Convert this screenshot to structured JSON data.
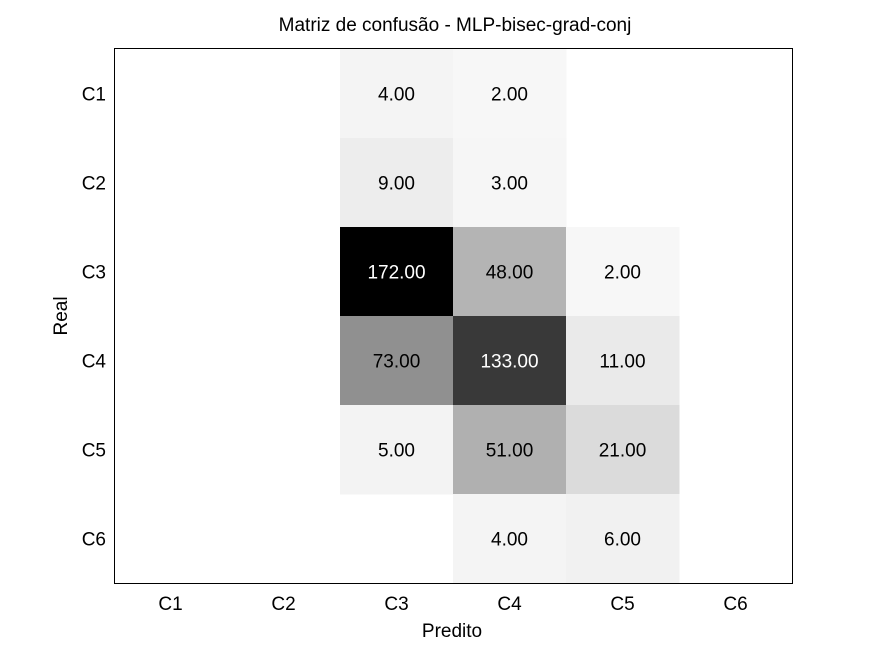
{
  "chart_data": {
    "type": "heatmap",
    "title": "Matriz de confusão - MLP-bisec-grad-conj",
    "xlabel": "Predito",
    "ylabel": "Real",
    "x_categories": [
      "C1",
      "C2",
      "C3",
      "C4",
      "C5",
      "C6"
    ],
    "y_categories": [
      "C1",
      "C2",
      "C3",
      "C4",
      "C5",
      "C6"
    ],
    "colormap": "gray-reversed",
    "grid": false,
    "cells": [
      {
        "row": "C1",
        "col": "C3",
        "value": 4,
        "label": "4.00"
      },
      {
        "row": "C1",
        "col": "C4",
        "value": 2,
        "label": "2.00"
      },
      {
        "row": "C2",
        "col": "C3",
        "value": 9,
        "label": "9.00"
      },
      {
        "row": "C2",
        "col": "C4",
        "value": 3,
        "label": "3.00"
      },
      {
        "row": "C3",
        "col": "C3",
        "value": 172,
        "label": "172.00"
      },
      {
        "row": "C3",
        "col": "C4",
        "value": 48,
        "label": "48.00"
      },
      {
        "row": "C3",
        "col": "C5",
        "value": 2,
        "label": "2.00"
      },
      {
        "row": "C4",
        "col": "C3",
        "value": 73,
        "label": "73.00"
      },
      {
        "row": "C4",
        "col": "C4",
        "value": 133,
        "label": "133.00"
      },
      {
        "row": "C4",
        "col": "C5",
        "value": 11,
        "label": "11.00"
      },
      {
        "row": "C5",
        "col": "C3",
        "value": 5,
        "label": "5.00"
      },
      {
        "row": "C5",
        "col": "C4",
        "value": 51,
        "label": "51.00"
      },
      {
        "row": "C5",
        "col": "C5",
        "value": 21,
        "label": "21.00"
      },
      {
        "row": "C6",
        "col": "C4",
        "value": 4,
        "label": "4.00"
      },
      {
        "row": "C6",
        "col": "C5",
        "value": 6,
        "label": "6.00"
      }
    ]
  }
}
